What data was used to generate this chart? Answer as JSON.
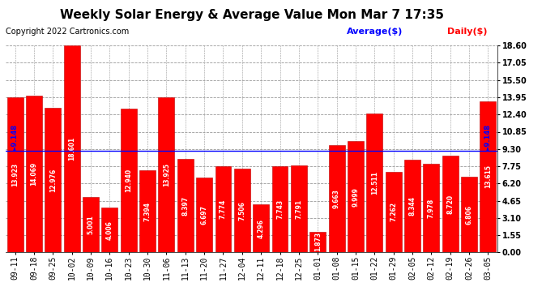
{
  "title": "Weekly Solar Energy & Average Value Mon Mar 7 17:35",
  "copyright": "Copyright 2022 Cartronics.com",
  "legend_average": "Average($)",
  "legend_daily": "Daily($)",
  "categories": [
    "09-11",
    "09-18",
    "09-25",
    "10-02",
    "10-09",
    "10-16",
    "10-23",
    "10-30",
    "11-06",
    "11-13",
    "11-20",
    "11-27",
    "12-04",
    "12-11",
    "12-18",
    "12-25",
    "01-01",
    "01-08",
    "01-15",
    "01-22",
    "01-29",
    "02-05",
    "02-12",
    "02-19",
    "02-26",
    "03-05"
  ],
  "values": [
    13.923,
    14.069,
    12.976,
    18.601,
    5.001,
    4.006,
    12.94,
    7.394,
    13.925,
    8.397,
    6.697,
    7.774,
    7.506,
    4.296,
    7.743,
    7.791,
    1.873,
    9.663,
    9.999,
    12.511,
    7.262,
    8.344,
    7.978,
    8.72,
    6.806,
    13.615
  ],
  "average_value": 9.148,
  "average_label": "9.148",
  "bar_color": "#ff0000",
  "bar_edge_color": "#bb0000",
  "average_line_color": "#0000ff",
  "text_color_value": "#ffffff",
  "text_color_average": "#0000ff",
  "text_color_daily": "#ff0000",
  "background_color": "#ffffff",
  "grid_color": "#999999",
  "ylim": [
    0,
    18.6
  ],
  "yticks": [
    0.0,
    1.55,
    3.1,
    4.65,
    6.2,
    7.75,
    9.3,
    10.85,
    12.4,
    13.95,
    15.5,
    17.05,
    18.6
  ],
  "title_fontsize": 11,
  "copyright_fontsize": 7,
  "bar_value_fontsize": 5.5,
  "tick_fontsize": 7,
  "legend_fontsize": 8
}
